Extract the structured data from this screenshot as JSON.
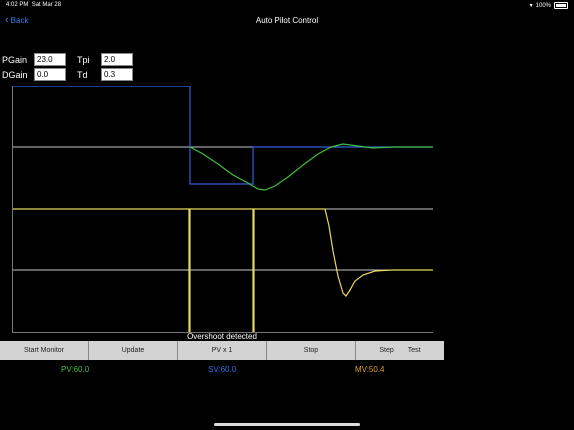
{
  "status": {
    "time": "4:02 PM",
    "date": "Sat Mar 28",
    "battery": "100%"
  },
  "nav": {
    "back_label": "Back",
    "title": "Auto Pilot Control"
  },
  "params": {
    "pgain_label": "PGain",
    "pgain_value": "23.0",
    "tpi_label": "Tpi",
    "tpi_value": "2.0",
    "dgain_label": "DGain",
    "dgain_value": "0.0",
    "td_label": "Td",
    "td_value": "0.3"
  },
  "plot": {
    "message": "Overshoot detected"
  },
  "toolbar": {
    "start_label": "Start Monitor",
    "update_label": "Update",
    "pv_label": "PV x 1",
    "stop_label": "Stop",
    "step_label": "Step",
    "test_label": "Test"
  },
  "readouts": {
    "pv": "PV:60.0",
    "sv": "SV:60.0",
    "mv": "MV:50.4"
  },
  "colors": {
    "pv": "#3ec03e",
    "sv": "#2f5fe0",
    "mv": "#e6d860",
    "grid": "#c8c8c8",
    "accent": "#2f80ed"
  }
}
